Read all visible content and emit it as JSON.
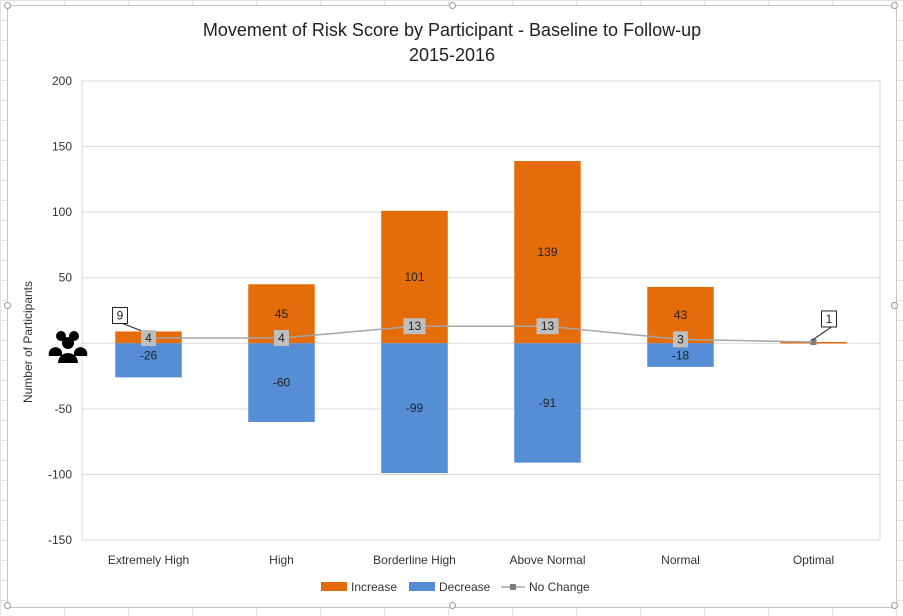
{
  "chart_data": {
    "type": "bar",
    "stacked": true,
    "title": "Movement of Risk Score by Participant - Baseline to Follow-up",
    "subtitle": "2015-2016",
    "xlabel": "",
    "ylabel": "Number of Participants",
    "ylim": [
      -150,
      200
    ],
    "yticks": [
      -150,
      -100,
      -50,
      0,
      50,
      100,
      150,
      200
    ],
    "ytick_labels": [
      "-150",
      "-100",
      "-50",
      "",
      "50",
      "100",
      "150",
      "200"
    ],
    "grid": true,
    "legend_position": "bottom",
    "categories": [
      "Extremely High",
      "High",
      "Borderline High",
      "Above Normal",
      "Normal",
      "Optimal"
    ],
    "series": [
      {
        "name": "Increase",
        "type": "bar",
        "color": "#E46C0A",
        "values": [
          9,
          45,
          101,
          139,
          43,
          1
        ]
      },
      {
        "name": "Decrease",
        "type": "bar",
        "color": "#558ED5",
        "values": [
          -26,
          -60,
          -99,
          -91,
          -18,
          0
        ]
      },
      {
        "name": "No Change",
        "type": "line",
        "color": "#A6A6A6",
        "values": [
          4,
          4,
          13,
          13,
          3,
          1
        ]
      }
    ],
    "data_labels": {
      "increase": [
        "9",
        "45",
        "101",
        "139",
        "43",
        "1"
      ],
      "decrease": [
        "-26",
        "-60",
        "-99",
        "-91",
        "-18",
        ""
      ],
      "no_change": [
        "4",
        "4",
        "13",
        "13",
        "3",
        ""
      ]
    },
    "callout_label_categories": [
      0,
      5
    ],
    "icon": "people-group-icon"
  }
}
